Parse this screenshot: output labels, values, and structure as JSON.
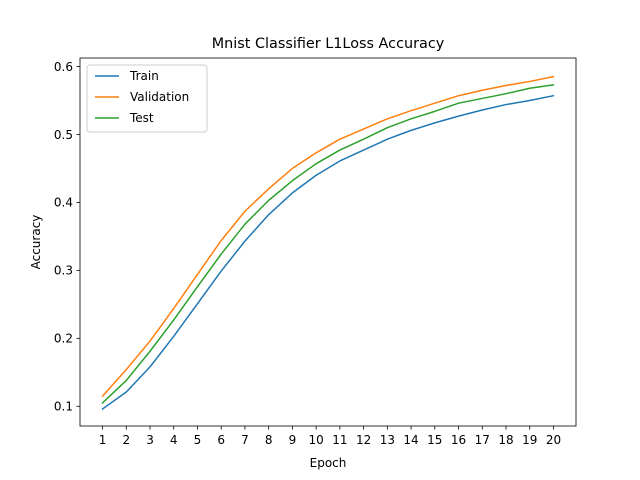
{
  "chart_data": {
    "type": "line",
    "title": "Mnist Classifier L1Loss Accuracy",
    "xlabel": "Epoch",
    "ylabel": "Accuracy",
    "x": [
      1,
      2,
      3,
      4,
      5,
      6,
      7,
      8,
      9,
      10,
      11,
      12,
      13,
      14,
      15,
      16,
      17,
      18,
      19,
      20
    ],
    "xticks": [
      "1",
      "2",
      "3",
      "4",
      "5",
      "6",
      "7",
      "8",
      "9",
      "10",
      "11",
      "12",
      "13",
      "14",
      "15",
      "16",
      "17",
      "18",
      "19",
      "20"
    ],
    "xlim": [
      0.05,
      20.95
    ],
    "ylim": [
      0.071,
      0.6125
    ],
    "yticks": [
      "0.1",
      "0.2",
      "0.3",
      "0.4",
      "0.5",
      "0.6"
    ],
    "yticks_values": [
      0.1,
      0.2,
      0.3,
      0.4,
      0.5,
      0.6
    ],
    "grid": false,
    "legend_position": "upper-left",
    "series": [
      {
        "name": "Train",
        "color": "#1f77b4",
        "values": [
          0.096,
          0.121,
          0.158,
          0.203,
          0.251,
          0.299,
          0.343,
          0.382,
          0.414,
          0.44,
          0.461,
          0.477,
          0.493,
          0.506,
          0.517,
          0.527,
          0.536,
          0.544,
          0.55,
          0.557
        ]
      },
      {
        "name": "Validation",
        "color": "#ff7f0e",
        "values": [
          0.115,
          0.154,
          0.196,
          0.244,
          0.294,
          0.344,
          0.387,
          0.42,
          0.45,
          0.473,
          0.493,
          0.508,
          0.523,
          0.535,
          0.546,
          0.557,
          0.565,
          0.572,
          0.578,
          0.585
        ]
      },
      {
        "name": "Test",
        "color": "#2ca02c",
        "values": [
          0.105,
          0.138,
          0.181,
          0.227,
          0.276,
          0.324,
          0.368,
          0.403,
          0.432,
          0.457,
          0.477,
          0.493,
          0.51,
          0.523,
          0.534,
          0.546,
          0.553,
          0.56,
          0.568,
          0.573
        ]
      }
    ]
  }
}
